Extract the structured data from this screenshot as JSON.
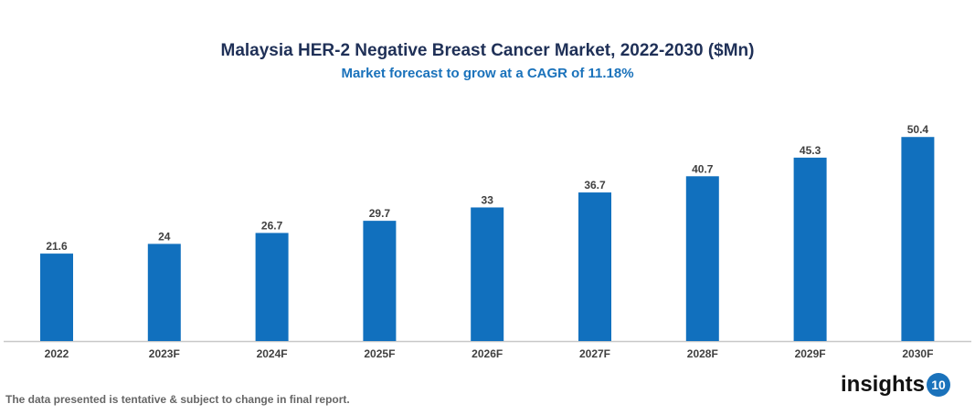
{
  "chart_data": {
    "type": "bar",
    "title": "Malaysia HER-2 Negative Breast Cancer Market, 2022-2030 ($Mn)",
    "subtitle": "Market forecast to grow at a CAGR of 11.18%",
    "categories": [
      "2022",
      "2023F",
      "2024F",
      "2025F",
      "2026F",
      "2027F",
      "2028F",
      "2029F",
      "2030F"
    ],
    "values": [
      21.6,
      24,
      26.7,
      29.7,
      33,
      36.7,
      40.7,
      45.3,
      50.4
    ],
    "data_labels": [
      "21.6",
      "24",
      "26.7",
      "29.7",
      "33",
      "36.7",
      "40.7",
      "45.3",
      "50.4"
    ],
    "xlabel": "",
    "ylabel": "",
    "ylim": [
      0,
      55
    ],
    "grid": false,
    "bar_color": "#1170be"
  },
  "footnote": "The data presented is tentative & subject to change in final report.",
  "logo": {
    "text": "insights",
    "badge": "10"
  }
}
